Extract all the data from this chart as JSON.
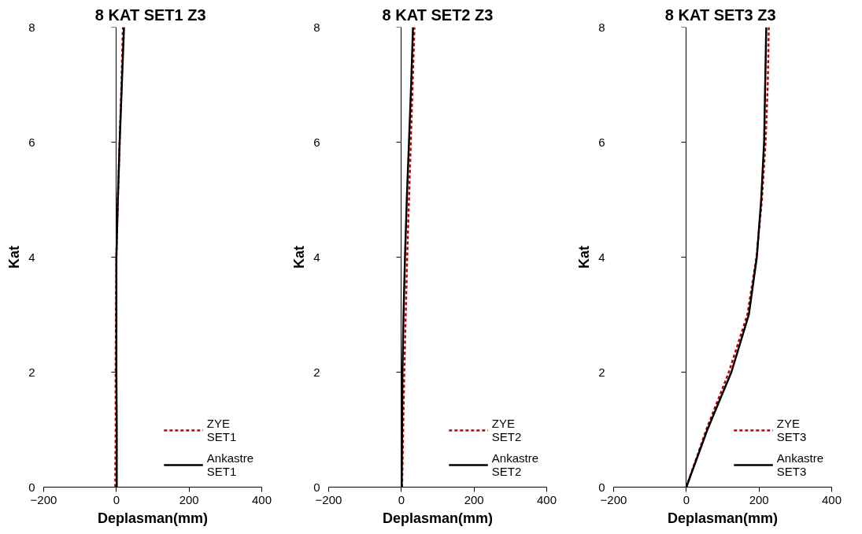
{
  "chart_data": [
    {
      "type": "line",
      "title": "8 KAT SET1  Z3",
      "xlabel": "Deplasman(mm)",
      "ylabel": "Kat",
      "xlim": [
        -200,
        400
      ],
      "xticks": [
        -200,
        0,
        200,
        400
      ],
      "ylim": [
        0,
        8
      ],
      "yticks": [
        0,
        2,
        4,
        6,
        8
      ],
      "legend": "bottom right",
      "marker": "none",
      "series": [
        {
          "name": "ZYE\nSET1",
          "color": "#c00000",
          "line_style": "dashed",
          "x": [
            -3,
            -2,
            -2,
            -1,
            0,
            4,
            9,
            14,
            18
          ],
          "values": [
            0,
            1,
            2,
            3,
            4,
            5,
            6,
            7,
            8
          ]
        },
        {
          "name": "Ankastre\nSET1",
          "color": "#000000",
          "line_style": "solid",
          "x": [
            1,
            1,
            0,
            0,
            0,
            4,
            9,
            15,
            21
          ],
          "values": [
            0,
            1,
            2,
            3,
            4,
            5,
            6,
            7,
            8
          ]
        }
      ]
    },
    {
      "type": "line",
      "title": "8 KAT SET2 Z3",
      "xlabel": "Deplasman(mm)",
      "ylabel": "Kat",
      "xlim": [
        -200,
        400
      ],
      "xticks": [
        -200,
        0,
        200,
        400
      ],
      "ylim": [
        0,
        8
      ],
      "yticks": [
        0,
        2,
        4,
        6,
        8
      ],
      "legend": "bottom right",
      "marker": "none",
      "series": [
        {
          "name": "ZYE\nSET2",
          "color": "#c00000",
          "line_style": "dashed",
          "x": [
            2,
            5,
            8,
            12,
            16,
            21,
            26,
            31,
            36
          ],
          "values": [
            0,
            1,
            2,
            3,
            4,
            5,
            6,
            7,
            8
          ]
        },
        {
          "name": "Ankastre\nSET2",
          "color": "#000000",
          "line_style": "solid",
          "x": [
            1,
            2,
            3,
            6,
            10,
            15,
            21,
            27,
            32
          ],
          "values": [
            0,
            1,
            2,
            3,
            4,
            5,
            6,
            7,
            8
          ]
        }
      ]
    },
    {
      "type": "line",
      "title": "8 KAT SET3  Z3",
      "xlabel": "Deplasman(mm)",
      "ylabel": "Kat",
      "xlim": [
        -200,
        400
      ],
      "xticks": [
        -200,
        0,
        200,
        400
      ],
      "ylim": [
        0,
        8
      ],
      "yticks": [
        0,
        2,
        4,
        6,
        8
      ],
      "legend": "bottom right",
      "marker": "none",
      "series": [
        {
          "name": "ZYE\nSET3",
          "color": "#c00000",
          "line_style": "dashed",
          "x": [
            0,
            55,
            117,
            168,
            193,
            208,
            218,
            224,
            227
          ],
          "values": [
            0,
            1,
            2,
            3,
            4,
            5,
            6,
            7,
            8
          ]
        },
        {
          "name": "Ankastre\nSET3",
          "color": "#000000",
          "line_style": "solid",
          "x": [
            0,
            58,
            124,
            172,
            194,
            206,
            214,
            217,
            220
          ],
          "values": [
            0,
            1,
            2,
            3,
            4,
            5,
            6,
            7,
            8
          ]
        }
      ]
    }
  ]
}
